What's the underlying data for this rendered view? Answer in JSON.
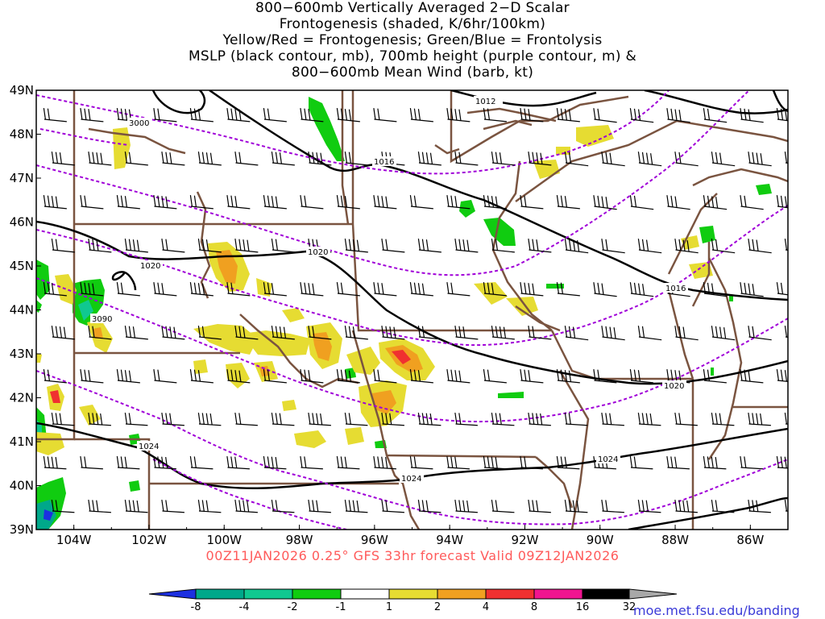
{
  "title_lines": [
    "800−600mb Vertically Averaged 2−D Scalar",
    "Frontogenesis (shaded, K/6hr/100km)",
    "Yellow/Red = Frontogenesis;  Green/Blue = Frontolysis",
    "MSLP (black contour, mb), 700mb height (purple contour, m) &",
    "800−600mb Mean Wind (barb, kt)"
  ],
  "subtitle": "00Z11JAN2026 0.25° GFS 33hr forecast Valid 09Z12JAN2026",
  "credit": "moe.met.fsu.edu/banding",
  "map": {
    "lon_min": -105.0,
    "lon_max": -85.0,
    "lat_min": 39.0,
    "lat_max": 49.0,
    "lat_ticks": [
      "49N",
      "48N",
      "47N",
      "46N",
      "45N",
      "44N",
      "43N",
      "42N",
      "41N",
      "40N",
      "39N"
    ],
    "lon_ticks": [
      "104W",
      "102W",
      "100W",
      "98W",
      "96W",
      "94W",
      "92W",
      "90W",
      "88W",
      "86W"
    ],
    "colors": {
      "mslp": "#000000",
      "height": "#a000d8",
      "border": "#7a5440",
      "barb": "#000000"
    },
    "mslp_labels": [
      "1012",
      "1016",
      "1020",
      "1020",
      "1024",
      "1024",
      "1024",
      "1016",
      "1020"
    ],
    "height_labels": [
      "3000",
      "3090"
    ]
  },
  "colorbar": {
    "labels": [
      "-8",
      "-4",
      "-2",
      "-1",
      "1",
      "2",
      "4",
      "8",
      "16",
      "32"
    ],
    "colors": [
      "#1c30e0",
      "#00a88a",
      "#10c890",
      "#10cc10",
      "#ffffff",
      "#e6dc32",
      "#f0a020",
      "#f03030",
      "#f01490",
      "#000000",
      "#a8a8a8"
    ]
  }
}
